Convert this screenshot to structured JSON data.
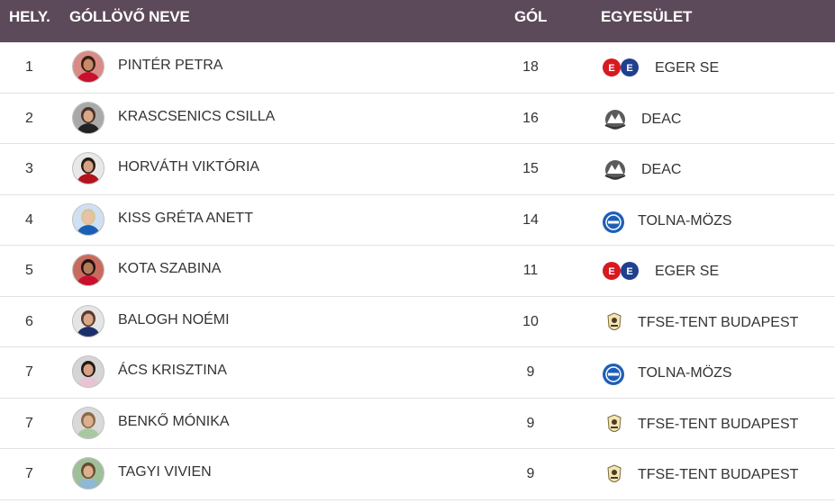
{
  "header": {
    "rank": "HELY.",
    "name": "GÓLLÖVŐ NEVE",
    "goals": "GÓL",
    "club": "EGYESÜLET"
  },
  "rows": [
    {
      "rank": "1",
      "name": "PINTÉR PETRA",
      "goals": "18",
      "club": "EGER SE",
      "logo": "eger-se-logo",
      "jersey": "#c8102e",
      "skin": "#c98a6a",
      "hair": "#3a1f14",
      "bg": "#d98c86"
    },
    {
      "rank": "2",
      "name": "KRASCSENICS CSILLA",
      "goals": "16",
      "club": "DEAC",
      "logo": "deac-logo",
      "jersey": "#222222",
      "skin": "#d9a78a",
      "hair": "#4a3326",
      "bg": "#a9a9a9"
    },
    {
      "rank": "3",
      "name": "HORVÁTH VIKTÓRIA",
      "goals": "15",
      "club": "DEAC",
      "logo": "deac-logo",
      "jersey": "#b3131b",
      "skin": "#d6a184",
      "hair": "#2a1a12",
      "bg": "#e8e8e8"
    },
    {
      "rank": "4",
      "name": "KISS GRÉTA ANETT",
      "goals": "14",
      "club": "TOLNA-MÖZS",
      "logo": "tolna-mozs-logo",
      "jersey": "#1b5fb5",
      "skin": "#e8c2a6",
      "hair": "#d9c59a",
      "bg": "#cfe0f2"
    },
    {
      "rank": "5",
      "name": "KOTA SZABINA",
      "goals": "11",
      "club": "EGER SE",
      "logo": "eger-se-logo",
      "jersey": "#c8102e",
      "skin": "#b57a5a",
      "hair": "#1f1410",
      "bg": "#c96a5e"
    },
    {
      "rank": "6",
      "name": "BALOGH NOÉMI",
      "goals": "10",
      "club": "TFSE-TENT BUDAPEST",
      "logo": "tfse-logo",
      "jersey": "#1d2f6b",
      "skin": "#d9a78a",
      "hair": "#5a3b2a",
      "bg": "#e5e5e5"
    },
    {
      "rank": "7",
      "name": "ÁCS KRISZTINA",
      "goals": "9",
      "club": "TOLNA-MÖZS",
      "logo": "tolna-mozs-logo",
      "jersey": "#e7c3d4",
      "skin": "#d6a184",
      "hair": "#231a16",
      "bg": "#d5d5d5"
    },
    {
      "rank": "7",
      "name": "BENKŐ MÓNIKA",
      "goals": "9",
      "club": "TFSE-TENT BUDAPEST",
      "logo": "tfse-logo",
      "jersey": "#a8c8a0",
      "skin": "#dcb08f",
      "hair": "#8a6a48",
      "bg": "#d9d9d9"
    },
    {
      "rank": "7",
      "name": "TAGYI VIVIEN",
      "goals": "9",
      "club": "TFSE-TENT BUDAPEST",
      "logo": "tfse-logo",
      "jersey": "#8fb7d6",
      "skin": "#dcb08f",
      "hair": "#6a4a30",
      "bg": "#9fbf9a"
    }
  ]
}
